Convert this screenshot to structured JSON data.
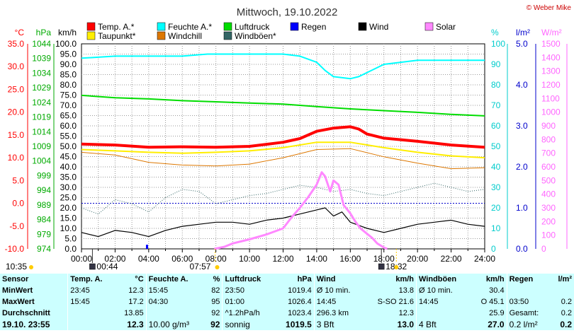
{
  "chart_data": {
    "type": "line",
    "title": "Mittwoch, 19.10.2022",
    "credit": "© Weber Mike",
    "x_ticks": [
      "00:00",
      "02:00",
      "04:00",
      "06:00",
      "08:00",
      "10:00",
      "12:00",
      "14:00",
      "16:00",
      "18:00",
      "20:00",
      "22:00",
      "24:00"
    ],
    "x_range_hours": [
      0,
      24
    ],
    "axes": {
      "temp": {
        "unit": "°C",
        "ticks": [
          "35.0",
          "30.0",
          "25.0",
          "20.0",
          "15.0",
          "10.0",
          "5.0",
          "0.0",
          "-5.0",
          "-10.0"
        ],
        "range": [
          -10,
          35
        ],
        "color": "#ff0000"
      },
      "pressure": {
        "unit": "hPa",
        "ticks": [
          "1044",
          "1039",
          "1034",
          "1029",
          "1024",
          "1019",
          "1014",
          "1009",
          "1004",
          "999",
          "994",
          "989",
          "984",
          "979",
          "974"
        ],
        "range": [
          974,
          1044
        ],
        "color": "#00aa00"
      },
      "wind": {
        "unit": "km/h",
        "ticks": [
          "100.0",
          "95.0",
          "90.0",
          "85.0",
          "80.0",
          "75.0",
          "70.0",
          "65.0",
          "60.0",
          "55.0",
          "50.0",
          "45.0",
          "40.0",
          "35.0",
          "30.0",
          "25.0",
          "20.0",
          "15.0",
          "10.0",
          "5.0",
          "0.0"
        ],
        "range": [
          0,
          100
        ],
        "color": "#000000"
      },
      "humidity": {
        "unit": "%",
        "ticks": [
          "100",
          "90",
          "80",
          "70",
          "60",
          "50",
          "40",
          "30",
          "20",
          "10",
          "0"
        ],
        "range": [
          0,
          100
        ],
        "color": "#00cccc"
      },
      "rain": {
        "unit": "l/m²",
        "ticks": [
          "5.0",
          "4.0",
          "3.0",
          "2.0",
          "1.0",
          "0.0"
        ],
        "range": [
          0,
          5
        ],
        "color": "#0000cc"
      },
      "solar": {
        "unit": "W/m²",
        "ticks": [
          "1500",
          "1400",
          "1300",
          "1200",
          "1100",
          "1000",
          "900",
          "800",
          "700",
          "600",
          "500",
          "400",
          "300",
          "200",
          "100",
          "0"
        ],
        "range": [
          0,
          1500
        ],
        "color": "#ff88ff"
      }
    },
    "legend": [
      {
        "name": "Temp. A.*",
        "color": "#ff0000"
      },
      {
        "name": "Feuchte A.*",
        "color": "#00ffff"
      },
      {
        "name": "Luftdruck",
        "color": "#00dd00"
      },
      {
        "name": "Regen",
        "color": "#0000ff"
      },
      {
        "name": "Wind",
        "color": "#000000"
      },
      {
        "name": "Solar",
        "color": "#ff88ff"
      },
      {
        "name": "Taupunkt*",
        "color": "#ffee00"
      },
      {
        "name": "Windchill",
        "color": "#dd7700"
      },
      {
        "name": "Windböen*",
        "color": "#336666"
      }
    ],
    "series": [
      {
        "name": "Temp. A.*",
        "axis": "temp",
        "color": "#ff0000",
        "x": [
          0,
          2,
          4,
          6,
          8,
          10,
          12,
          13,
          14,
          15,
          16,
          16.5,
          17,
          18,
          20,
          22,
          24
        ],
        "values": [
          13.0,
          12.8,
          12.3,
          12.4,
          12.3,
          12.5,
          13.4,
          14.2,
          15.8,
          16.5,
          16.8,
          16.3,
          15.2,
          14.3,
          13.6,
          12.8,
          12.3
        ]
      },
      {
        "name": "Taupunkt*",
        "axis": "temp",
        "color": "#ffee00",
        "x": [
          0,
          2,
          4,
          6,
          8,
          10,
          12,
          14,
          16,
          18,
          20,
          22,
          24
        ],
        "values": [
          11.8,
          11.5,
          11.2,
          11.0,
          11.2,
          11.5,
          12.2,
          13.4,
          13.4,
          12.2,
          11.2,
          10.4,
          10.0
        ]
      },
      {
        "name": "Windchill",
        "axis": "temp",
        "color": "#dd7700",
        "x": [
          0,
          2,
          4,
          6,
          8,
          10,
          12,
          14,
          16,
          18,
          20,
          22,
          24
        ],
        "values": [
          11.2,
          10.6,
          9.0,
          8.4,
          8.2,
          8.6,
          10.0,
          11.8,
          12.0,
          10.2,
          8.8,
          7.6,
          7.8
        ]
      },
      {
        "name": "Feuchte A.*",
        "axis": "humidity",
        "color": "#00ffff",
        "x": [
          0,
          2,
          4,
          6,
          7.5,
          10,
          12,
          13,
          14,
          14.5,
          15,
          16,
          16.5,
          17,
          18,
          19,
          20,
          22,
          24
        ],
        "values": [
          93,
          94,
          94,
          94,
          95,
          95,
          95,
          94,
          91,
          87,
          84,
          83,
          84,
          86,
          90,
          91,
          92,
          92,
          92
        ]
      },
      {
        "name": "Luftdruck",
        "axis": "pressure",
        "color": "#00dd00",
        "x": [
          0,
          2,
          4,
          6,
          8,
          10,
          12,
          14,
          16,
          18,
          20,
          22,
          24
        ],
        "values": [
          1026.4,
          1025.6,
          1025.2,
          1024.6,
          1024.2,
          1023.8,
          1023.4,
          1022.6,
          1021.8,
          1021.2,
          1020.6,
          1019.9,
          1019.4
        ]
      },
      {
        "name": "Wind",
        "axis": "wind",
        "color": "#000000",
        "x": [
          0,
          1,
          2,
          3,
          4,
          5,
          6,
          7,
          8,
          9,
          10,
          11,
          12,
          13,
          14,
          14.5,
          15,
          15.5,
          16,
          17,
          18,
          19,
          20,
          21,
          22,
          23,
          24
        ],
        "values": [
          8,
          6,
          9,
          8,
          6,
          9,
          11,
          12,
          13,
          13,
          12,
          14,
          15,
          17,
          19,
          20,
          16,
          18,
          13,
          10,
          8,
          10,
          12,
          13,
          14,
          12,
          11
        ]
      },
      {
        "name": "Windböen*",
        "axis": "wind",
        "color": "#336666",
        "x": [
          0,
          1,
          2,
          3,
          4,
          5,
          6,
          7,
          8,
          9,
          10,
          11,
          12,
          13,
          14,
          15,
          16,
          17,
          18,
          19,
          20,
          21,
          22,
          23,
          24
        ],
        "values": [
          20,
          17,
          24,
          22,
          18,
          25,
          29,
          28,
          22,
          24,
          26,
          27,
          29,
          31,
          30,
          28,
          29,
          27,
          26,
          28,
          30,
          32,
          30,
          28,
          29
        ]
      },
      {
        "name": "Solar",
        "axis": "solar",
        "color": "#ff88ff",
        "x": [
          7.9,
          8.5,
          9,
          10,
          11,
          12,
          12.5,
          13,
          13.5,
          14,
          14.3,
          14.5,
          14.8,
          15,
          15.3,
          15.6,
          16,
          16.3,
          16.6,
          17,
          17.3,
          17.6,
          18,
          18.2
        ],
        "values": [
          0,
          15,
          40,
          70,
          105,
          150,
          230,
          300,
          380,
          470,
          560,
          530,
          420,
          500,
          470,
          320,
          260,
          200,
          150,
          110,
          80,
          40,
          10,
          0
        ]
      }
    ],
    "rain_marks": [
      {
        "x": 3.9,
        "value": 0.1
      }
    ],
    "markers": [
      {
        "x": 0.65,
        "label": "00:44",
        "icon": "moon"
      },
      {
        "x": 17.85,
        "label": "18:32",
        "icon": "moon"
      }
    ],
    "sun": {
      "rise_label": "07:57",
      "set_label": "18:32"
    },
    "left_time_label": "10:35"
  },
  "stats": {
    "header": [
      "Sensor",
      "Temp. A.",
      "°C",
      "Feuchte A.",
      "%",
      "Luftdruck",
      "hPa",
      "Wind",
      "km/h",
      "Windböen",
      "km/h",
      "Regen",
      "l/m²"
    ],
    "rows": [
      {
        "label": "MinWert",
        "cells": [
          "23:45",
          "12.3",
          "15:45",
          "82",
          "23:50",
          "1019.4",
          "Ø 10 min.",
          "13.8",
          "Ø 10 min.",
          "30.4",
          "",
          ""
        ]
      },
      {
        "label": "MaxWert",
        "cells": [
          "15:45",
          "17.2",
          "04:30",
          "95",
          "01:00",
          "1026.4",
          "14:45",
          "S-SO 21.6",
          "14:45",
          "O 45.1",
          "03:50",
          "0.2"
        ]
      },
      {
        "label": "Durchschnitt",
        "cells": [
          "",
          "13.85",
          "",
          "92",
          "^1.2hPa/h",
          "1023.4",
          "296.3 km",
          "12.3",
          "",
          "25.9",
          "Gesamt:",
          "0.2"
        ]
      },
      {
        "label": "19.10. 23:55",
        "cells": [
          "",
          "12.3",
          "10.00 g/m³",
          "92",
          "sonnig",
          "1019.5",
          "3 Bft",
          "13.0",
          "4 Bft",
          "27.0",
          "0.2 l/m²",
          "0.2"
        ]
      }
    ]
  }
}
